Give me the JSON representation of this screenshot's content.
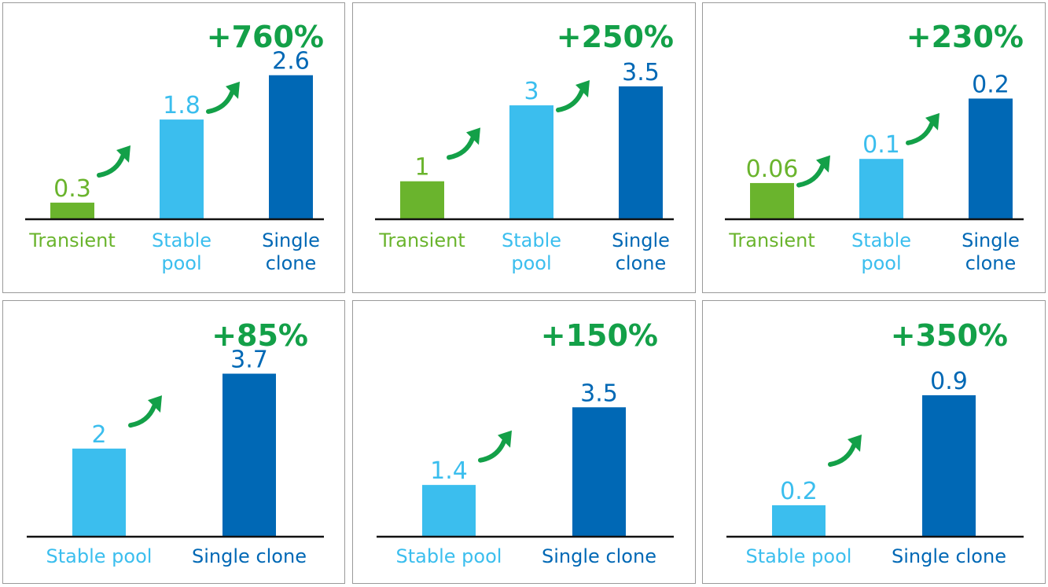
{
  "colors": {
    "transient": "#6ab42d",
    "stable": "#3bbeee",
    "single": "#0068b5",
    "growth": "#13a048",
    "axis": "#111111"
  },
  "chart_data": [
    {
      "type": "bar",
      "title": "+760%",
      "categories": [
        [
          "Transient"
        ],
        [
          "Stable",
          "pool"
        ],
        [
          "Single",
          "clone"
        ]
      ],
      "category_colors": [
        "transient",
        "stable",
        "single"
      ],
      "values": [
        0.3,
        1.8,
        2.6
      ],
      "value_labels": [
        "0.3",
        "1.8",
        "2.6"
      ],
      "ylim": [
        0,
        3.05
      ]
    },
    {
      "type": "bar",
      "title": "+250%",
      "categories": [
        [
          "Transient"
        ],
        [
          "Stable",
          "pool"
        ],
        [
          "Single",
          "clone"
        ]
      ],
      "category_colors": [
        "transient",
        "stable",
        "single"
      ],
      "values": [
        1,
        3,
        3.5
      ],
      "value_labels": [
        "1",
        "3",
        "3.5"
      ],
      "ylim": [
        0,
        4.45
      ]
    },
    {
      "type": "bar",
      "title": "+230%",
      "categories": [
        [
          "Transient"
        ],
        [
          "Stable",
          "pool"
        ],
        [
          "Single",
          "clone"
        ]
      ],
      "category_colors": [
        "transient",
        "stable",
        "single"
      ],
      "values": [
        0.06,
        0.1,
        0.2
      ],
      "value_labels": [
        "0.06",
        "0.1",
        "0.2"
      ],
      "ylim": [
        0,
        0.28
      ]
    },
    {
      "type": "bar",
      "title": "+85%",
      "categories": [
        [
          "Stable pool"
        ],
        [
          "Single clone"
        ]
      ],
      "category_colors": [
        "stable",
        "single"
      ],
      "values": [
        2,
        3.7
      ],
      "value_labels": [
        "2",
        "3.7"
      ],
      "ylim": [
        0,
        4.28
      ]
    },
    {
      "type": "bar",
      "title": "+150%",
      "categories": [
        [
          "Stable pool"
        ],
        [
          "Single clone"
        ]
      ],
      "category_colors": [
        "stable",
        "single"
      ],
      "values": [
        1.4,
        3.5
      ],
      "value_labels": [
        "1.4",
        "3.5"
      ],
      "ylim": [
        0,
        5.1
      ]
    },
    {
      "type": "bar",
      "title": "+350%",
      "categories": [
        [
          "Stable pool"
        ],
        [
          "Single clone"
        ]
      ],
      "category_colors": [
        "stable",
        "single"
      ],
      "values": [
        0.2,
        0.9
      ],
      "value_labels": [
        "0.2",
        "0.9"
      ],
      "ylim": [
        0,
        1.2
      ]
    }
  ]
}
